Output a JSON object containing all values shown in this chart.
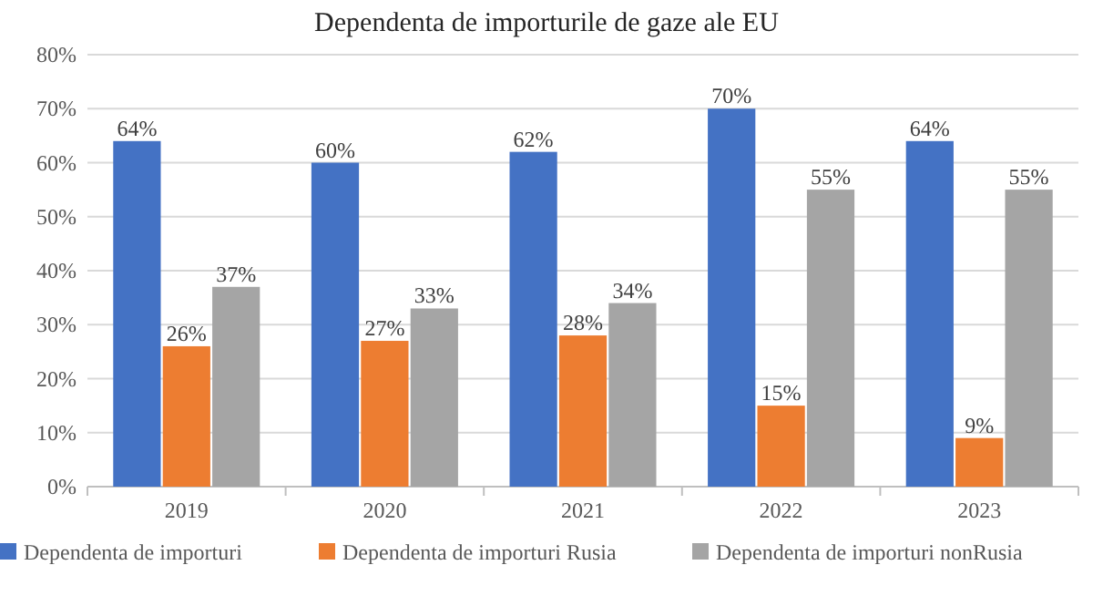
{
  "chart_data": {
    "type": "bar",
    "title": "Dependenta de importurile de gaze ale EU",
    "categories": [
      "2019",
      "2020",
      "2021",
      "2022",
      "2023"
    ],
    "series": [
      {
        "name": "Dependenta de importuri",
        "color": "#4472c4",
        "values": [
          64,
          60,
          62,
          70,
          64
        ],
        "value_labels": [
          "64%",
          "60%",
          "62%",
          "70%",
          "64%"
        ]
      },
      {
        "name": "Dependenta de importuri Rusia",
        "color": "#ed7d31",
        "values": [
          26,
          27,
          28,
          15,
          9
        ],
        "value_labels": [
          "26%",
          "27%",
          "28%",
          "15%",
          "9%"
        ]
      },
      {
        "name": "Dependenta de importuri nonRusia",
        "color": "#a5a5a5",
        "values": [
          37,
          33,
          34,
          55,
          55
        ],
        "value_labels": [
          "37%",
          "33%",
          "34%",
          "55%",
          "55%"
        ]
      }
    ],
    "ylim": [
      0,
      80
    ],
    "yticks": [
      {
        "value": 0,
        "label": "0%"
      },
      {
        "value": 10,
        "label": "10%"
      },
      {
        "value": 20,
        "label": "20%"
      },
      {
        "value": 30,
        "label": "30%"
      },
      {
        "value": 40,
        "label": "40%"
      },
      {
        "value": 50,
        "label": "50%"
      },
      {
        "value": 60,
        "label": "60%"
      },
      {
        "value": 70,
        "label": "70%"
      },
      {
        "value": 80,
        "label": "80%"
      }
    ],
    "grid": "y",
    "legend": "bottom"
  }
}
